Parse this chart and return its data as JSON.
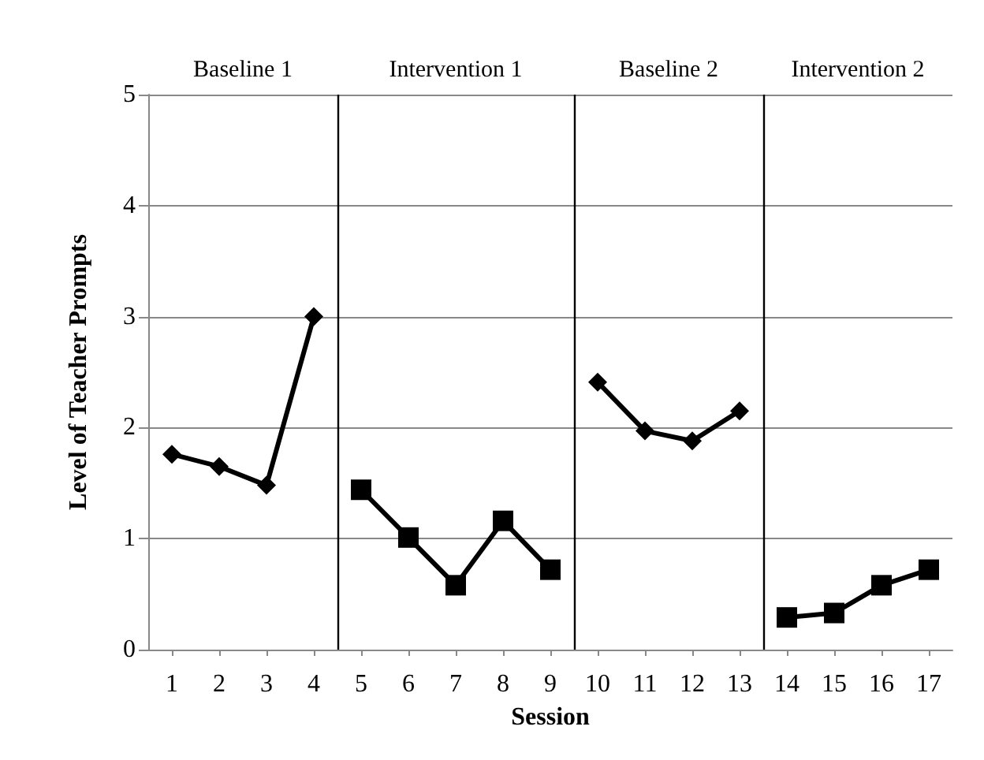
{
  "chart_data": {
    "type": "line",
    "xlabel": "Session",
    "ylabel": "Level of Teacher Prompts",
    "xlim": [
      0.5,
      17.5
    ],
    "xticks": [
      1,
      2,
      3,
      4,
      5,
      6,
      7,
      8,
      9,
      10,
      11,
      12,
      13,
      14,
      15,
      16,
      17
    ],
    "ylim": [
      0,
      5
    ],
    "yticks": [
      0,
      1,
      2,
      3,
      4,
      5
    ],
    "grid": "y",
    "series": [
      {
        "color": "#000000",
        "marker": "diamond",
        "x": [
          1,
          2,
          3,
          4
        ],
        "values": [
          1.76,
          1.65,
          1.48,
          3.0
        ]
      },
      {
        "color": "#000000",
        "marker": "square",
        "x": [
          5,
          6,
          7,
          8,
          9
        ],
        "values": [
          1.44,
          1.01,
          0.58,
          1.16,
          0.72
        ]
      },
      {
        "color": "#000000",
        "marker": "diamond",
        "x": [
          10,
          11,
          12,
          13
        ],
        "values": [
          2.41,
          1.97,
          1.88,
          2.15
        ]
      },
      {
        "color": "#000000",
        "marker": "square",
        "x": [
          14,
          15,
          16,
          17
        ],
        "values": [
          0.29,
          0.33,
          0.58,
          0.72
        ]
      }
    ],
    "ref_lines": [
      {
        "axis": "x",
        "value": 4.5,
        "color": "#000000"
      },
      {
        "axis": "x",
        "value": 9.5,
        "color": "#000000"
      },
      {
        "axis": "x",
        "value": 13.5,
        "color": "#000000"
      }
    ],
    "annotations": [
      "Baseline 1",
      "Intervention 1",
      "Baseline 2",
      "Intervention 2"
    ]
  }
}
